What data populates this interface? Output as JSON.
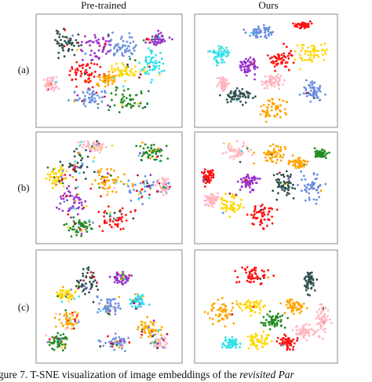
{
  "header": {
    "columns": [
      "Pre-trained",
      "Ours"
    ]
  },
  "rows": [
    "(a)",
    "(b)",
    "(c)"
  ],
  "caption": {
    "text": "igure 7. T-SNE visualization of image embeddings of the",
    "emphasis": "revisited Par"
  }
}
